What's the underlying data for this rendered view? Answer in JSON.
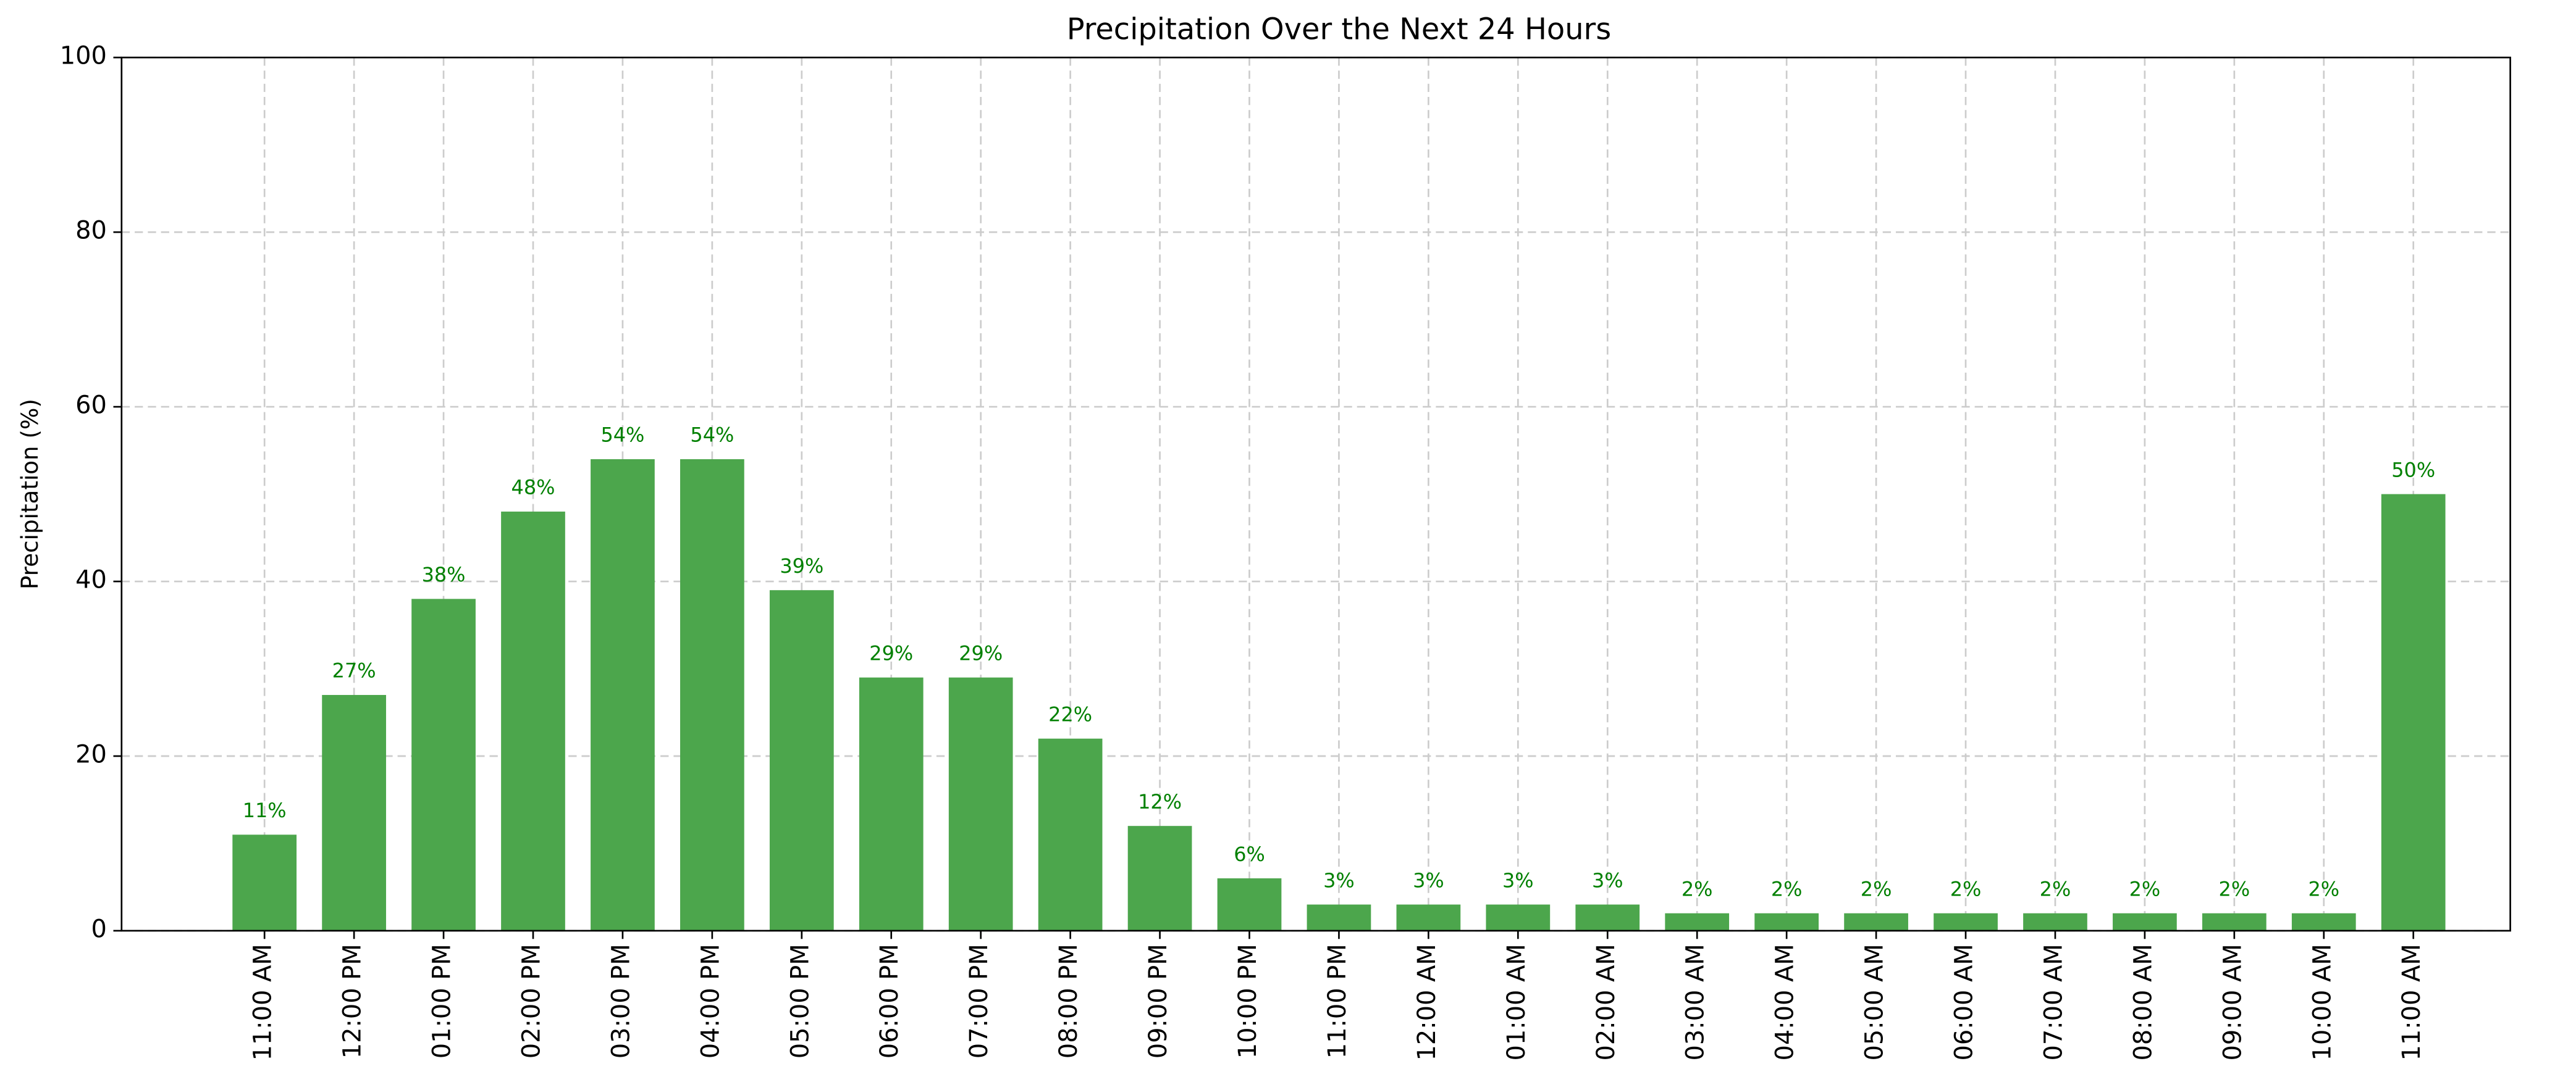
{
  "chart_data": {
    "type": "bar",
    "title": "Precipitation Over the Next 24 Hours",
    "y_label": "Precipitation (%)",
    "categories": [
      "11:00 AM",
      "12:00 PM",
      "01:00 PM",
      "02:00 PM",
      "03:00 PM",
      "04:00 PM",
      "05:00 PM",
      "06:00 PM",
      "07:00 PM",
      "08:00 PM",
      "09:00 PM",
      "10:00 PM",
      "11:00 PM",
      "12:00 AM",
      "01:00 AM",
      "02:00 AM",
      "03:00 AM",
      "04:00 AM",
      "05:00 AM",
      "06:00 AM",
      "07:00 AM",
      "08:00 AM",
      "09:00 AM",
      "10:00 AM",
      "11:00 AM"
    ],
    "values": [
      11,
      27,
      38,
      48,
      54,
      54,
      39,
      29,
      29,
      22,
      12,
      6,
      3,
      3,
      3,
      3,
      2,
      2,
      2,
      2,
      2,
      2,
      2,
      2,
      50
    ],
    "value_labels": [
      "11%",
      "27%",
      "38%",
      "48%",
      "54%",
      "54%",
      "39%",
      "29%",
      "29%",
      "22%",
      "12%",
      "6%",
      "3%",
      "3%",
      "3%",
      "3%",
      "2%",
      "2%",
      "2%",
      "2%",
      "2%",
      "2%",
      "2%",
      "2%",
      "50%"
    ],
    "color": "#4ca64c",
    "label_color": "#008000",
    "ylim": [
      0,
      100
    ],
    "yticks": [
      0,
      20,
      40,
      60,
      80,
      100
    ],
    "grid": true
  }
}
